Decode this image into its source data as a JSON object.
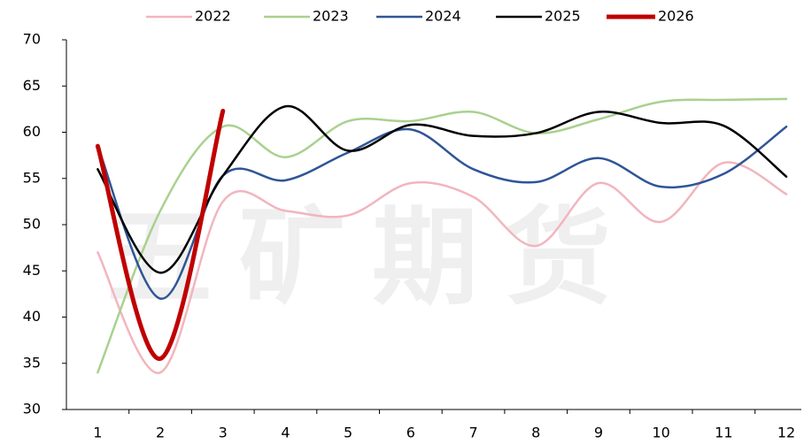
{
  "chart_data": {
    "type": "line",
    "watermark": "五矿期货",
    "categories": [
      "1",
      "2",
      "3",
      "4",
      "5",
      "6",
      "7",
      "8",
      "9",
      "10",
      "11",
      "12"
    ],
    "series": [
      {
        "name": "2022",
        "color": "#f2b5bd",
        "width": 2.5,
        "values": [
          47,
          34,
          52.5,
          51.5,
          51,
          54.5,
          53,
          47.7,
          54.5,
          50.3,
          56.7,
          53.3
        ]
      },
      {
        "name": "2023",
        "color": "#a9d18e",
        "width": 2.5,
        "values": [
          34,
          51.5,
          60.6,
          57.3,
          61.2,
          61.2,
          62.2,
          59.9,
          61.4,
          63.3,
          63.5,
          63.6
        ]
      },
      {
        "name": "2024",
        "color": "#2f5597",
        "width": 2.5,
        "values": [
          58.5,
          42,
          55.3,
          54.8,
          57.8,
          60.3,
          56,
          54.6,
          57.2,
          54.1,
          55.5,
          60.6
        ]
      },
      {
        "name": "2025",
        "color": "#000000",
        "width": 2.5,
        "values": [
          56,
          44.8,
          55.3,
          62.8,
          58,
          60.8,
          59.6,
          59.9,
          62.2,
          61,
          60.7,
          55.2
        ]
      },
      {
        "name": "2026",
        "color": "#c00000",
        "width": 5,
        "values": [
          58.5,
          35.5,
          62.3,
          null,
          null,
          null,
          null,
          null,
          null,
          null,
          null,
          null
        ]
      }
    ],
    "ylim": [
      30,
      70
    ],
    "yticks": [
      30,
      35,
      40,
      45,
      50,
      55,
      60,
      65,
      70
    ],
    "grid": false,
    "legend": "top"
  }
}
